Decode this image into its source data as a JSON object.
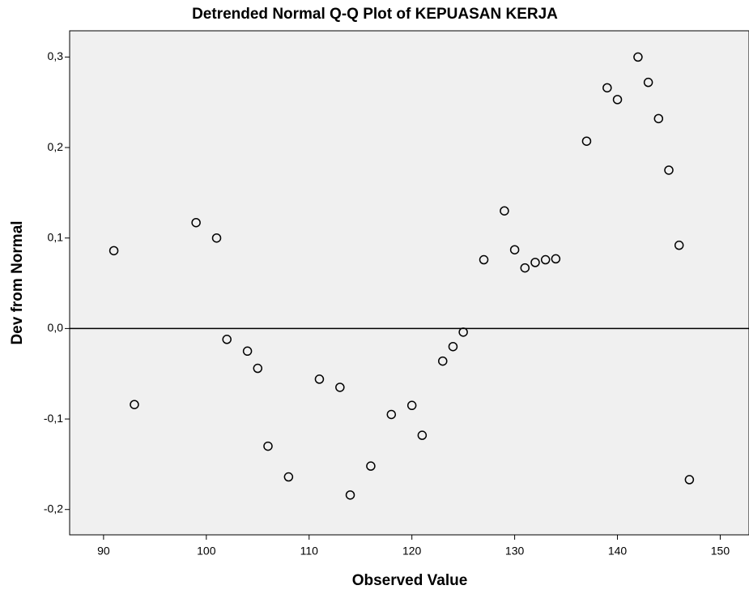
{
  "chart_data": {
    "type": "scatter",
    "title": "Detrended Normal Q-Q Plot of KEPUASAN KERJA",
    "x_label": "Observed Value",
    "y_label": "Dev from Normal",
    "x": [
      91,
      93,
      99,
      101,
      102,
      104,
      105,
      106,
      108,
      111,
      113,
      114,
      116,
      118,
      120,
      121,
      123,
      124,
      125,
      127,
      129,
      130,
      131,
      132,
      133,
      134,
      137,
      139,
      140,
      142,
      143,
      144,
      145,
      146,
      147
    ],
    "values": [
      0.086,
      -0.084,
      0.117,
      0.1,
      -0.012,
      -0.025,
      -0.044,
      -0.13,
      -0.164,
      -0.056,
      -0.065,
      -0.184,
      -0.152,
      -0.095,
      -0.085,
      -0.118,
      -0.036,
      -0.02,
      -0.004,
      0.076,
      0.13,
      0.087,
      0.067,
      0.073,
      0.076,
      0.077,
      0.207,
      0.266,
      0.253,
      0.3,
      0.272,
      0.232,
      0.175,
      0.092,
      -0.167
    ],
    "reference_line": 0,
    "xlim": [
      86.7,
      152.8
    ],
    "xticks": [
      90,
      100,
      110,
      120,
      130,
      140,
      150
    ],
    "ylim": [
      -0.228,
      0.329
    ],
    "yticks": [
      {
        "value": -0.2,
        "label": "-0,2"
      },
      {
        "value": -0.1,
        "label": "-0,1"
      },
      {
        "value": 0,
        "label": "0,0"
      },
      {
        "value": 0.1,
        "label": "0,1"
      },
      {
        "value": 0.2,
        "label": "0,2"
      },
      {
        "value": 0.3,
        "label": "0,3"
      }
    ],
    "background": "#f0f0f0",
    "color": "#000000"
  }
}
